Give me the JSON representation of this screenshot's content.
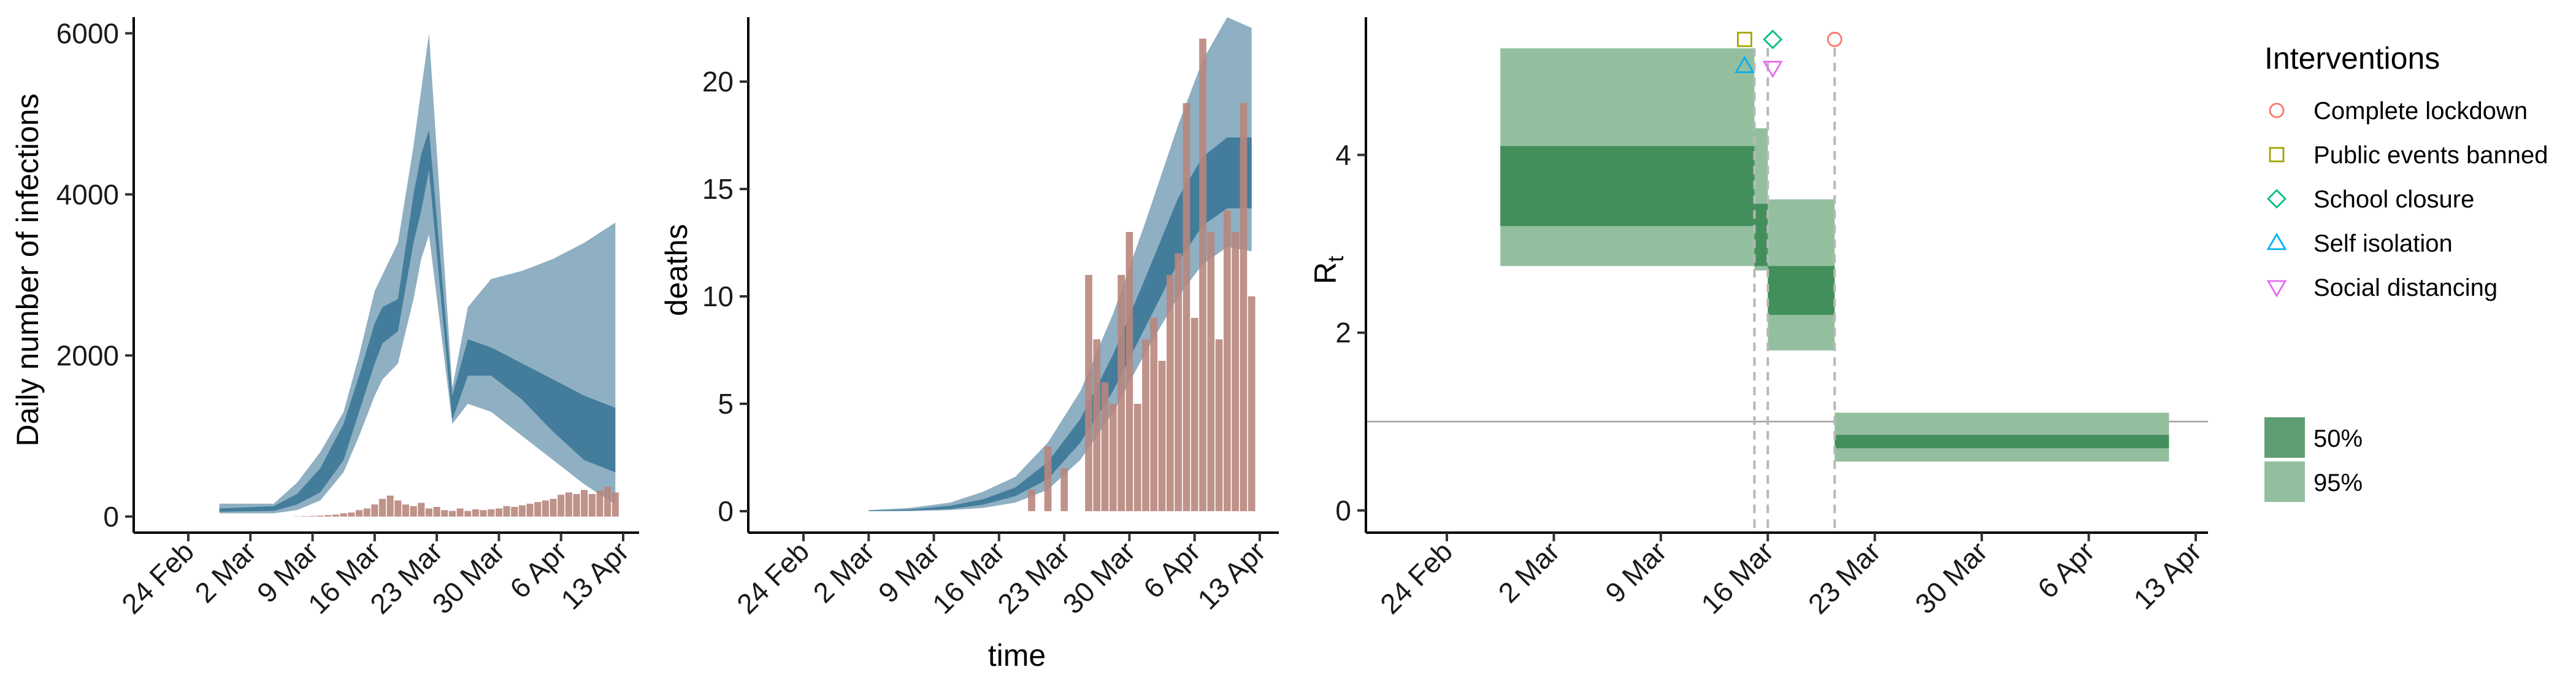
{
  "chart_data": [
    {
      "type": "area",
      "ylabel": "Daily number of infections",
      "xlabel": "",
      "x_ticks": [
        "24 Feb",
        "2 Mar",
        "9 Mar",
        "16 Mar",
        "23 Mar",
        "30 Mar",
        "6 Apr",
        "13 Apr"
      ],
      "x_range": [
        "2020-02-17",
        "2020-04-13"
      ],
      "ylim": [
        -200,
        6200
      ],
      "y_ticks": [
        0,
        2000,
        4000,
        6000
      ],
      "grid": false,
      "colors": {
        "band95": "#8fafc2",
        "band50": "#437d9b",
        "bars": "#b8867d"
      },
      "bands": {
        "x": [
          "2020-02-21",
          "2020-02-28",
          "2020-03-02",
          "2020-03-05",
          "2020-03-08",
          "2020-03-10",
          "2020-03-12",
          "2020-03-13",
          "2020-03-15",
          "2020-03-17",
          "2020-03-18",
          "2020-03-19",
          "2020-03-22",
          "2020-03-24",
          "2020-03-27",
          "2020-03-31",
          "2020-04-04",
          "2020-04-08",
          "2020-04-12"
        ],
        "ci95": [
          [
            40,
            160
          ],
          [
            40,
            160
          ],
          [
            80,
            420
          ],
          [
            200,
            800
          ],
          [
            550,
            1300
          ],
          [
            1000,
            2000
          ],
          [
            1500,
            2800
          ],
          [
            1700,
            3000
          ],
          [
            1900,
            3400
          ],
          [
            2700,
            4600
          ],
          [
            3200,
            5300
          ],
          [
            3500,
            6000
          ],
          [
            1150,
            1600
          ],
          [
            1400,
            2600
          ],
          [
            1300,
            2950
          ],
          [
            1000,
            3050
          ],
          [
            700,
            3200
          ],
          [
            400,
            3400
          ],
          [
            150,
            3650
          ]
        ],
        "ci50": [
          [
            60,
            100
          ],
          [
            70,
            130
          ],
          [
            150,
            280
          ],
          [
            300,
            600
          ],
          [
            700,
            1150
          ],
          [
            1300,
            1750
          ],
          [
            1900,
            2400
          ],
          [
            2150,
            2600
          ],
          [
            2300,
            2700
          ],
          [
            3400,
            4000
          ],
          [
            3800,
            4500
          ],
          [
            4300,
            4800
          ],
          [
            1200,
            1500
          ],
          [
            1750,
            2200
          ],
          [
            1750,
            2100
          ],
          [
            1450,
            1900
          ],
          [
            1050,
            1700
          ],
          [
            700,
            1500
          ],
          [
            550,
            1350
          ]
        ]
      },
      "observed": {
        "x": [
          "2020-03-02",
          "2020-03-03",
          "2020-03-04",
          "2020-03-05",
          "2020-03-06",
          "2020-03-07",
          "2020-03-08",
          "2020-03-09",
          "2020-03-10",
          "2020-03-11",
          "2020-03-12",
          "2020-03-13",
          "2020-03-14",
          "2020-03-15",
          "2020-03-16",
          "2020-03-17",
          "2020-03-18",
          "2020-03-19",
          "2020-03-20",
          "2020-03-21",
          "2020-03-22",
          "2020-03-23",
          "2020-03-24",
          "2020-03-25",
          "2020-03-26",
          "2020-03-27",
          "2020-03-28",
          "2020-03-29",
          "2020-03-30",
          "2020-03-31",
          "2020-04-01",
          "2020-04-02",
          "2020-04-03",
          "2020-04-04",
          "2020-04-05",
          "2020-04-06",
          "2020-04-07",
          "2020-04-08",
          "2020-04-09",
          "2020-04-10",
          "2020-04-11",
          "2020-04-12"
        ],
        "values": [
          3,
          5,
          8,
          12,
          18,
          25,
          40,
          50,
          80,
          100,
          150,
          220,
          260,
          200,
          150,
          130,
          170,
          100,
          120,
          80,
          70,
          100,
          70,
          90,
          80,
          90,
          100,
          130,
          120,
          140,
          160,
          180,
          200,
          220,
          270,
          300,
          280,
          330,
          280,
          320,
          370,
          300
        ]
      }
    },
    {
      "type": "area",
      "ylabel": "deaths",
      "xlabel": "time",
      "x_ticks": [
        "24 Feb",
        "2 Mar",
        "9 Mar",
        "16 Mar",
        "23 Mar",
        "30 Mar",
        "6 Apr",
        "13 Apr"
      ],
      "x_range": [
        "2020-02-17",
        "2020-04-13"
      ],
      "ylim": [
        -1,
        23
      ],
      "y_ticks": [
        0,
        5,
        10,
        15,
        20
      ],
      "grid": false,
      "colors": {
        "band95": "#8fafc2",
        "band50": "#437d9b",
        "bars": "#b8867d"
      },
      "bands": {
        "x": [
          "2020-02-25",
          "2020-03-01",
          "2020-03-06",
          "2020-03-10",
          "2020-03-14",
          "2020-03-18",
          "2020-03-22",
          "2020-03-26",
          "2020-03-30",
          "2020-04-03",
          "2020-04-06",
          "2020-04-09",
          "2020-04-12"
        ],
        "ci95": [
          [
            0,
            0.05
          ],
          [
            0,
            0.15
          ],
          [
            0.05,
            0.4
          ],
          [
            0.15,
            0.9
          ],
          [
            0.4,
            1.6
          ],
          [
            1.0,
            3.2
          ],
          [
            2.4,
            5.6
          ],
          [
            4.6,
            9.2
          ],
          [
            7.4,
            13.5
          ],
          [
            10.0,
            18.0
          ],
          [
            11.5,
            21.0
          ],
          [
            12.3,
            23.0
          ],
          [
            12.1,
            22.5
          ]
        ],
        "ci50": [
          [
            0,
            0.03
          ],
          [
            0.03,
            0.08
          ],
          [
            0.1,
            0.25
          ],
          [
            0.3,
            0.55
          ],
          [
            0.7,
            1.1
          ],
          [
            1.5,
            2.3
          ],
          [
            3.2,
            4.3
          ],
          [
            5.6,
            7.3
          ],
          [
            8.6,
            10.9
          ],
          [
            11.6,
            14.6
          ],
          [
            13.3,
            16.5
          ],
          [
            14.1,
            17.4
          ],
          [
            14.1,
            17.4
          ]
        ]
      },
      "observed": {
        "x": [
          "2020-03-16",
          "2020-03-17",
          "2020-03-18",
          "2020-03-19",
          "2020-03-20",
          "2020-03-21",
          "2020-03-22",
          "2020-03-23",
          "2020-03-24",
          "2020-03-25",
          "2020-03-26",
          "2020-03-27",
          "2020-03-28",
          "2020-03-29",
          "2020-03-30",
          "2020-03-31",
          "2020-04-01",
          "2020-04-02",
          "2020-04-03",
          "2020-04-04",
          "2020-04-05",
          "2020-04-06",
          "2020-04-07",
          "2020-04-08",
          "2020-04-09",
          "2020-04-10",
          "2020-04-11",
          "2020-04-12"
        ],
        "values": [
          1,
          0,
          3,
          0,
          2,
          0,
          0,
          11,
          8,
          6,
          5,
          11,
          13,
          5,
          8,
          9,
          7,
          11,
          12,
          19,
          9,
          22,
          13,
          8,
          14,
          13,
          19,
          10
        ]
      }
    },
    {
      "type": "area",
      "ylabel": "R",
      "ylabel_sub": "t",
      "xlabel": "",
      "x_ticks": [
        "24 Feb",
        "2 Mar",
        "9 Mar",
        "16 Mar",
        "23 Mar",
        "30 Mar",
        "6 Apr",
        "13 Apr"
      ],
      "x_range": [
        "2020-02-17",
        "2020-04-13"
      ],
      "ylim": [
        -0.25,
        5.55
      ],
      "y_ticks": [
        0,
        2,
        4
      ],
      "reference_line": 1,
      "grid": false,
      "colors": {
        "band95": "#93bf9f",
        "band50": "#438f5c",
        "reference": "#a0a0a0",
        "intervention_lines": "#b8b8b8"
      },
      "segments": [
        {
          "start": "2020-02-21",
          "end": "2020-03-11",
          "ci95": [
            2.75,
            5.2
          ],
          "ci50": [
            3.2,
            4.1
          ]
        },
        {
          "start": "2020-03-11",
          "end": "2020-03-12",
          "ci95": [
            2.7,
            4.3
          ],
          "ci50": [
            2.75,
            3.45
          ]
        },
        {
          "start": "2020-03-12",
          "end": "2020-03-17",
          "ci95": [
            1.8,
            3.5
          ],
          "ci50": [
            2.2,
            2.75
          ]
        },
        {
          "start": "2020-03-17",
          "end": "2020-04-11",
          "ci95": [
            0.55,
            1.1
          ],
          "ci50": [
            0.7,
            0.85
          ]
        }
      ],
      "interventions": [
        {
          "name": "Complete lockdown",
          "date": "2020-03-17",
          "marker": "circle",
          "color": "#f8766d",
          "y": 5.3
        },
        {
          "name": "Public events banned",
          "date": "2020-03-11",
          "marker": "square",
          "color": "#a3a500",
          "y": 5.3
        },
        {
          "name": "School closure",
          "date": "2020-03-12",
          "marker": "diamond",
          "color": "#00bf7d",
          "y": 5.3
        },
        {
          "name": "Self isolation",
          "date": "2020-03-11",
          "marker": "triangle-up",
          "color": "#00b0f6",
          "y": 5.0
        },
        {
          "name": "Social distancing",
          "date": "2020-03-12",
          "marker": "triangle-down",
          "color": "#e76bf3",
          "y": 4.98
        }
      ],
      "legend": {
        "title": "Interventions",
        "placement": "right",
        "entries": [
          "Complete lockdown",
          "Public events banned",
          "School closure",
          "Self isolation",
          "Social distancing"
        ],
        "bands": [
          {
            "label": "50%",
            "color": "#5f9e72"
          },
          {
            "label": "95%",
            "color": "#93bf9f"
          }
        ]
      }
    }
  ]
}
